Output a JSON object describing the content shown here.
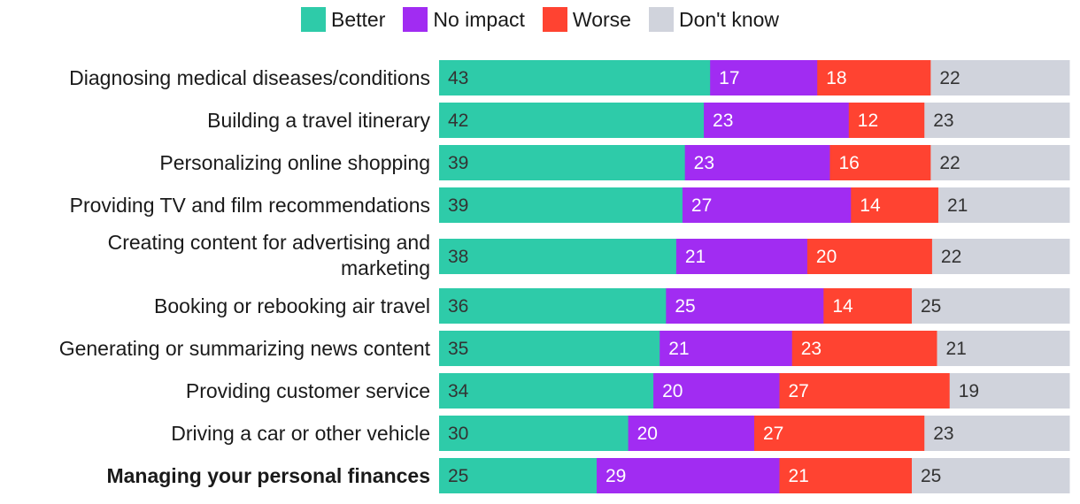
{
  "legend": [
    {
      "label": "Better",
      "color": "#2ecba9"
    },
    {
      "label": "No impact",
      "color": "#a12cf2"
    },
    {
      "label": "Worse",
      "color": "#ff4331"
    },
    {
      "label": "Don't know",
      "color": "#d0d3dc"
    }
  ],
  "chart_data": {
    "type": "bar",
    "orientation": "horizontal",
    "stacked": true,
    "title": "",
    "xlabel": "",
    "ylabel": "",
    "categories": [
      "Diagnosing medical diseases/conditions",
      "Building a travel itinerary",
      "Personalizing online shopping",
      "Providing TV and film recommendations",
      "Creating content for advertising and marketing",
      "Booking or rebooking air travel",
      "Generating or summarizing news content",
      "Providing customer service",
      "Driving a car or other vehicle",
      "Managing your personal finances"
    ],
    "bold_category": "Managing your personal finances",
    "series": [
      {
        "name": "Better",
        "color": "#2ecba9",
        "values": [
          43,
          42,
          39,
          39,
          38,
          36,
          35,
          34,
          30,
          25
        ]
      },
      {
        "name": "No impact",
        "color": "#a12cf2",
        "values": [
          17,
          23,
          23,
          27,
          21,
          25,
          21,
          20,
          20,
          29
        ]
      },
      {
        "name": "Worse",
        "color": "#ff4331",
        "values": [
          18,
          12,
          16,
          14,
          20,
          14,
          23,
          27,
          27,
          21
        ]
      },
      {
        "name": "Don't know",
        "color": "#d0d3dc",
        "values": [
          22,
          23,
          22,
          21,
          22,
          25,
          21,
          19,
          23,
          25
        ]
      }
    ],
    "legend_position": "top-center",
    "grid": false,
    "show_value_labels": true
  }
}
